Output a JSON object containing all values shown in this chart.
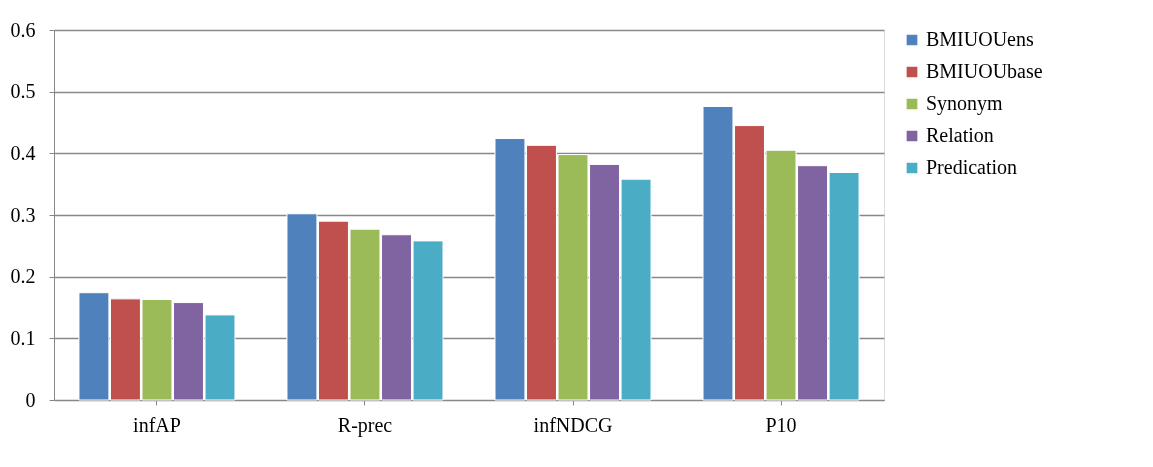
{
  "chart_data": {
    "type": "bar",
    "categories": [
      "infAP",
      "R-prec",
      "infNDCG",
      "P10"
    ],
    "series": [
      {
        "name": "BMIUOUens",
        "color": "#4f81bd",
        "values": [
          0.174,
          0.302,
          0.424,
          0.476
        ]
      },
      {
        "name": "BMIUOUbase",
        "color": "#c0504d",
        "values": [
          0.164,
          0.29,
          0.413,
          0.445
        ]
      },
      {
        "name": "Synonym",
        "color": "#9bbb59",
        "values": [
          0.163,
          0.277,
          0.398,
          0.405
        ]
      },
      {
        "name": "Relation",
        "color": "#8064a2",
        "values": [
          0.158,
          0.268,
          0.382,
          0.38
        ]
      },
      {
        "name": "Predication",
        "color": "#4bacc6",
        "values": [
          0.138,
          0.258,
          0.358,
          0.369
        ]
      }
    ],
    "ylim": [
      0,
      0.6
    ],
    "yticks": [
      0,
      0.1,
      0.2,
      0.3,
      0.4,
      0.5,
      0.6
    ],
    "grid": "y",
    "legend": "right"
  }
}
